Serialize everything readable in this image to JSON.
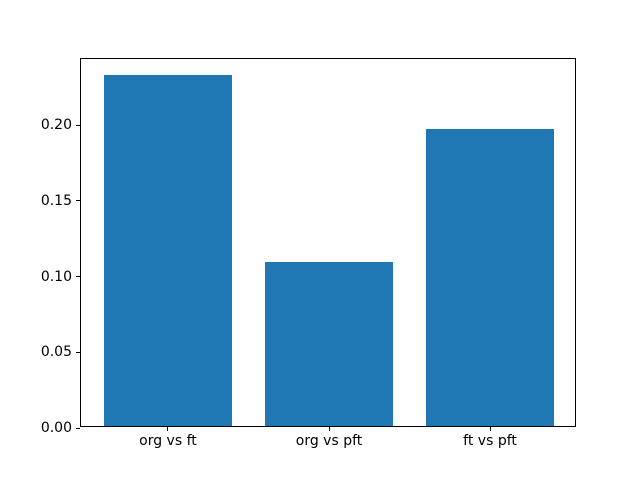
{
  "window": {
    "background": "#ffffff"
  },
  "chart_data": {
    "type": "bar",
    "categories": [
      "org vs ft",
      "org vs pft",
      "ft vs pft"
    ],
    "values": [
      0.232,
      0.108,
      0.196
    ],
    "yticks": [
      0,
      0.05,
      0.1,
      0.15,
      0.2
    ],
    "ytick_labels": [
      "0.00",
      "0.05",
      "0.10",
      "0.15",
      "0.20"
    ],
    "ylim": [
      0,
      0.2436
    ],
    "xlim": [
      -0.54,
      2.54
    ],
    "bar_width": 0.8,
    "bar_color": "#1f77b4",
    "axis_color": "#000000",
    "grid": false,
    "legend": false
  }
}
